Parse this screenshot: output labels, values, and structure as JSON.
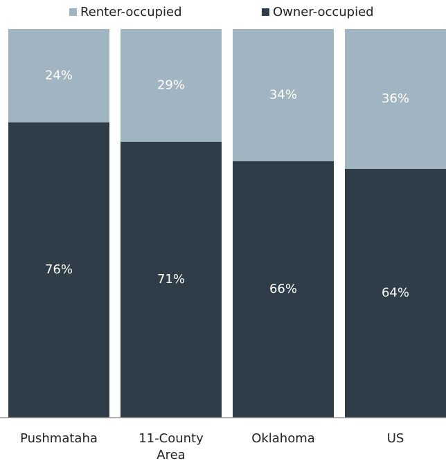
{
  "chart_data": {
    "type": "stacked_bar",
    "categories": [
      "Pushmataha",
      "11-County Area",
      "Oklahoma",
      "US"
    ],
    "series": [
      {
        "name": "Renter-occupied",
        "color": "#a0b4c1",
        "values": [
          24,
          29,
          34,
          36
        ],
        "value_labels": [
          "24%",
          "29%",
          "34%",
          "36%"
        ]
      },
      {
        "name": "Owner-occupied",
        "color": "#2e3d48",
        "values": [
          76,
          71,
          66,
          64
        ],
        "value_labels": [
          "76%",
          "71%",
          "66%",
          "64%"
        ]
      }
    ],
    "ylim": [
      0,
      100
    ]
  }
}
